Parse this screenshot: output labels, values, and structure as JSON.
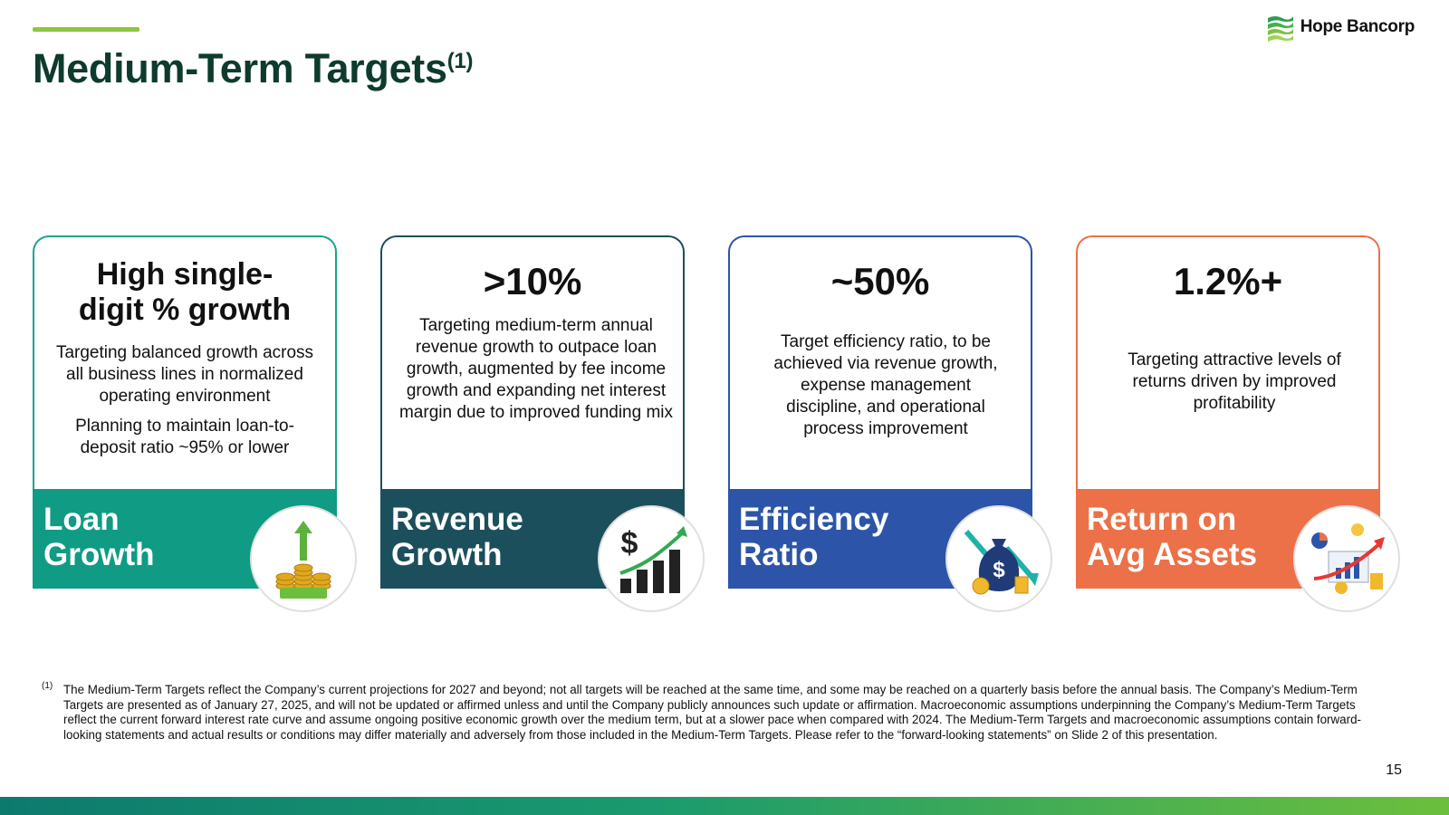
{
  "header": {
    "title": "Medium-Term Targets",
    "title_footnote_mark": "(1)",
    "logo_text": "Hope Bancorp"
  },
  "cards": [
    {
      "metric": "High single-digit % growth",
      "descriptions": [
        "Targeting balanced growth across all business lines in normalized operating environment",
        "Planning to maintain loan-to-deposit ratio ~95% or lower"
      ],
      "label": "Loan Growth",
      "color": "#0f9b84",
      "icon": "loan-coins-icon"
    },
    {
      "metric": ">10%",
      "descriptions": [
        "Targeting medium-term annual revenue growth to outpace loan growth, augmented by fee income growth and expanding net interest margin due to improved funding mix"
      ],
      "label": "Revenue Growth",
      "color": "#1c4f5c",
      "icon": "dollar-growth-chart-icon"
    },
    {
      "metric": "~50%",
      "descriptions": [
        "Target efficiency ratio, to be achieved via revenue growth, expense management discipline, and operational process improvement"
      ],
      "label": "Efficiency Ratio",
      "color": "#2c54a8",
      "icon": "money-bag-icon"
    },
    {
      "metric": "1.2%+",
      "descriptions": [
        "Targeting attractive levels of returns driven by improved profitability"
      ],
      "label": "Return on Avg Assets",
      "color": "#ec7148",
      "icon": "analytics-growth-icon"
    }
  ],
  "footnote": {
    "mark": "(1)",
    "text": "The Medium-Term Targets reflect the Company’s current projections for 2027 and beyond; not all targets will be reached at the same time, and some may be reached on a quarterly basis before the annual basis. The Company’s Medium-Term Targets are presented as of January 27, 2025, and will not be updated or affirmed unless and until the Company publicly announces such update or affirmation. Macroeconomic assumptions underpinning the Company’s Medium-Term Targets reflect the current forward interest rate curve and assume ongoing positive economic growth over the medium term, but at a slower pace when compared with 2024. The Medium-Term Targets and macroeconomic assumptions contain forward-looking statements and actual results or conditions may differ materially and adversely from those included in the Medium-Term Targets. Please refer to the “forward-looking statements” on Slide 2 of this presentation."
  },
  "page_number": "15"
}
